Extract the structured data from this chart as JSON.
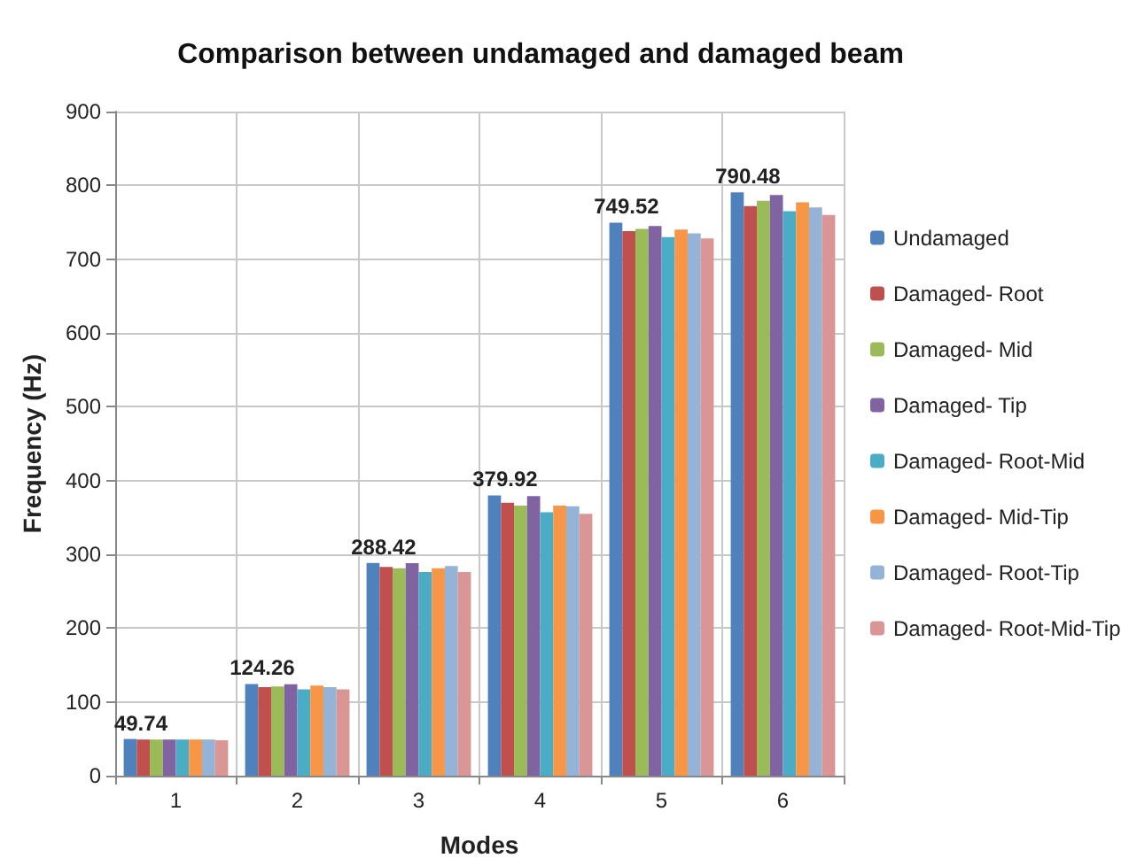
{
  "chart_data": {
    "type": "bar",
    "title": "Comparison between undamaged and damaged beam",
    "xlabel": "Modes",
    "ylabel": "Frequency (Hz)",
    "categories": [
      "1",
      "2",
      "3",
      "4",
      "5",
      "6"
    ],
    "series": [
      {
        "name": "Undamaged",
        "color": "#4f81bd",
        "values": [
          49.74,
          124.26,
          288.42,
          379.92,
          749.52,
          790.48
        ],
        "value_labels": [
          "49.74",
          "124.26",
          "288.42",
          "379.92",
          "749.52",
          "790.48"
        ]
      },
      {
        "name": "Damaged- Root",
        "color": "#c0504d",
        "values": [
          49,
          120,
          283,
          370,
          738,
          772
        ]
      },
      {
        "name": "Damaged- Mid",
        "color": "#9bbb59",
        "values": [
          49,
          121,
          281,
          366,
          741,
          779
        ]
      },
      {
        "name": "Damaged- Tip",
        "color": "#8064a2",
        "values": [
          49,
          124,
          288,
          379,
          745,
          787
        ]
      },
      {
        "name": "Damaged- Root-Mid",
        "color": "#4bacc6",
        "values": [
          49,
          117,
          276,
          357,
          730,
          765
        ]
      },
      {
        "name": "Damaged- Mid-Tip",
        "color": "#f79646",
        "values": [
          49,
          122,
          281,
          366,
          740,
          777
        ]
      },
      {
        "name": "Damaged- Root-Tip",
        "color": "#95b3d7",
        "values": [
          49,
          120,
          284,
          365,
          735,
          770
        ]
      },
      {
        "name": "Damaged- Root-Mid-Tip",
        "color": "#d99694",
        "values": [
          48,
          117,
          276,
          355,
          728,
          760
        ]
      }
    ],
    "ylim": [
      0,
      900
    ],
    "yticks": [
      0,
      100,
      200,
      300,
      400,
      500,
      600,
      700,
      800,
      900
    ],
    "grid": true,
    "legend": "right"
  }
}
